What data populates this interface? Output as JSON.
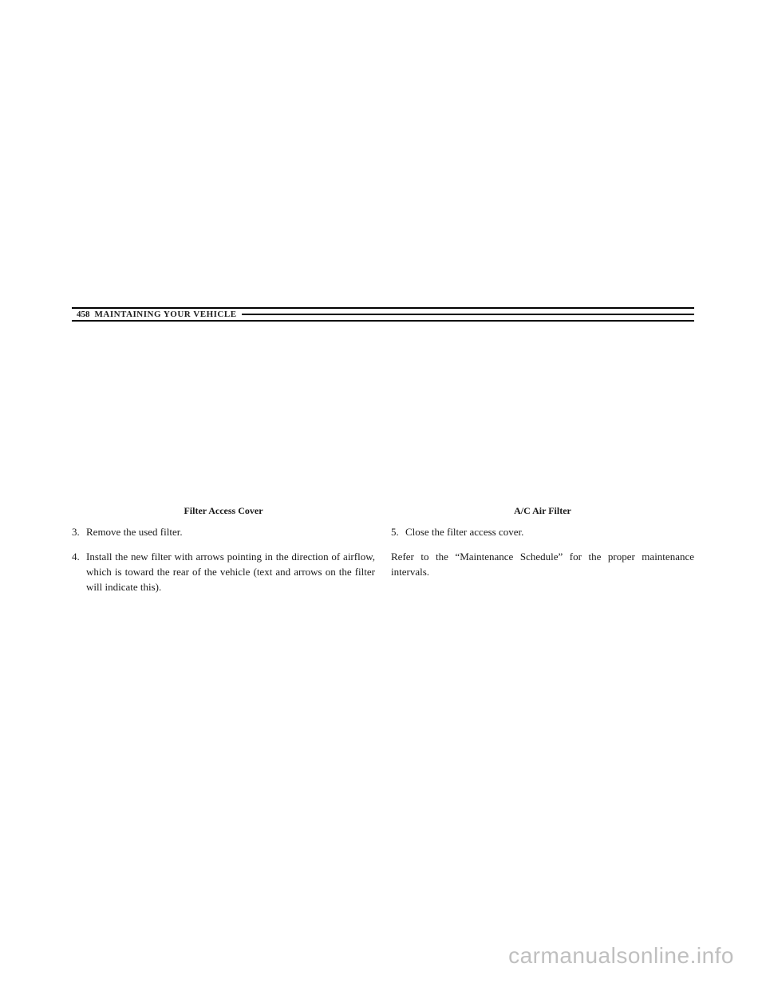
{
  "header": {
    "page_number": "458",
    "section_title": "MAINTAINING YOUR VEHICLE"
  },
  "left_column": {
    "caption": "Filter Access Cover",
    "steps": [
      {
        "num": "3.",
        "text": "Remove the used filter."
      },
      {
        "num": "4.",
        "text": "Install the new filter with arrows pointing in the direction of airflow, which is toward the rear of the vehicle (text and arrows on the filter will indicate this)."
      }
    ]
  },
  "right_column": {
    "caption": "A/C Air Filter",
    "steps": [
      {
        "num": "5.",
        "text": "Close the filter access cover."
      }
    ],
    "body": "Refer to the “Maintenance Schedule” for the proper maintenance intervals."
  },
  "watermark": "carmanualsonline.info"
}
